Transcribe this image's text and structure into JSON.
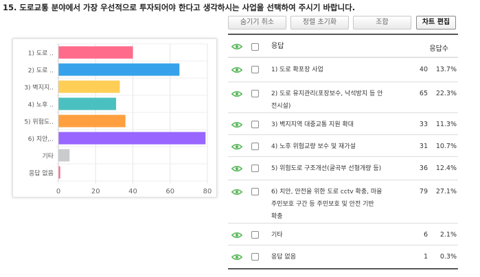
{
  "question": {
    "title": "15. 도로교통 분야에서 가장 우선적으로 투자되어야 한다고 생각하시는 사업을 선택하여 주시기 바랍니다."
  },
  "toolbar": {
    "hide_cancel_label": "숨기기 취소",
    "sort_reset_label": "정렬 초기화",
    "combine_label": "조합",
    "chart_edit_label": "차트 편집"
  },
  "table": {
    "header": {
      "response": "응답",
      "count": "응답수"
    },
    "rows": [
      {
        "label_lines": [
          "1) 도로 확포장 사업"
        ],
        "count": "40",
        "pct": "13.7%"
      },
      {
        "label_lines": [
          "2) 도로 유지관리(포장보수, 낙석방지 등 안",
          "전시설)"
        ],
        "count": "65",
        "pct": "22.3%"
      },
      {
        "label_lines": [
          "3) 벽지지역 대중교통 지원 확대"
        ],
        "count": "33",
        "pct": "11.3%"
      },
      {
        "label_lines": [
          "4) 노후 위험교량 보수 및 재가설"
        ],
        "count": "31",
        "pct": "10.7%"
      },
      {
        "label_lines": [
          "5) 위험도로 구조개선(굴곡부 선형개량 등)"
        ],
        "count": "36",
        "pct": "12.4%"
      },
      {
        "label_lines": [
          "6) 치안, 안전을 위한 도로 cctv 확충, 마을",
          "주민보호 구간 등 주민보호 및 안전 기반",
          "확충"
        ],
        "count": "79",
        "pct": "27.1%"
      },
      {
        "label_lines": [
          "기타"
        ],
        "count": "6",
        "pct": "2.1%"
      },
      {
        "label_lines": [
          "응답 없음"
        ],
        "count": "1",
        "pct": "0.3%"
      }
    ]
  },
  "colors": {
    "eye_icon": "#5cb85c",
    "rule": "#555555"
  },
  "chart_data": {
    "type": "bar",
    "orientation": "horizontal",
    "categories": [
      "1) 도로 ..",
      "2) 도로 ..",
      "3) 벽지지..",
      "4) 노후 ..",
      "5) 위험도..",
      "6) 치안,..",
      "기타",
      "응답 없음"
    ],
    "values": [
      40,
      65,
      33,
      31,
      36,
      79,
      6,
      1
    ],
    "colors": [
      "#ff6b8b",
      "#36a2eb",
      "#ffce56",
      "#4bc0c0",
      "#ff9f40",
      "#9966ff",
      "#c9cbcf",
      "#ff6b8b"
    ],
    "xlim": [
      0,
      80
    ],
    "xticks": [
      "0",
      "20",
      "40",
      "60",
      "80"
    ],
    "grid": true
  }
}
